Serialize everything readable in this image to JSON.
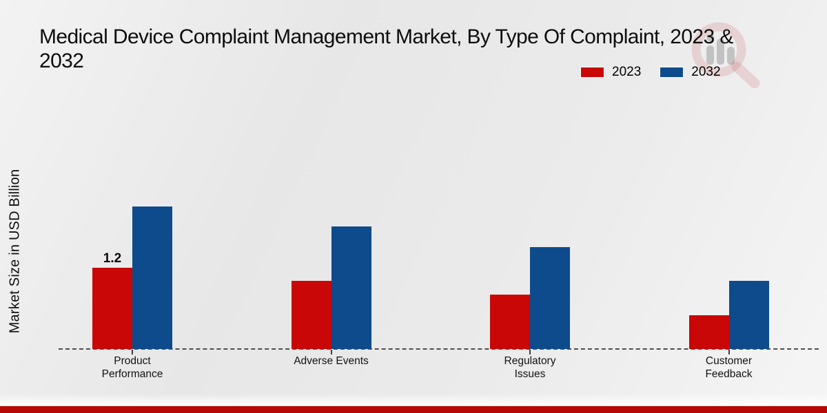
{
  "header": {
    "title_line1": "Medical Device Complaint Management Market, By Type Of Complaint, 2023 &",
    "title_line2": "2032"
  },
  "legend": {
    "items": [
      {
        "label": "2023",
        "color": "#c90707"
      },
      {
        "label": "2032",
        "color": "#0d4b8c"
      }
    ]
  },
  "chart_data": {
    "type": "bar",
    "title": "Medical Device Complaint Management Market, By Type Of Complaint, 2023 & 2032",
    "ylabel": "Market Size in USD Billion",
    "xlabel": "",
    "categories": [
      "Product Performance",
      "Adverse Events",
      "Regulatory Issues",
      "Customer Feedback"
    ],
    "series": [
      {
        "name": "2023",
        "color": "#c90707",
        "values": [
          1.2,
          1.0,
          0.8,
          0.5
        ]
      },
      {
        "name": "2032",
        "color": "#0d4b8c",
        "values": [
          2.1,
          1.8,
          1.5,
          1.0
        ]
      }
    ],
    "data_labels": [
      {
        "category_index": 0,
        "series_index": 0,
        "text": "1.2"
      }
    ],
    "ylim": [
      0,
      2.5
    ],
    "grid": false,
    "legend_position": "top-right",
    "baseline_style": "dashed"
  },
  "icons": {
    "watermark": "magnifier-bar-chart-watermark"
  }
}
